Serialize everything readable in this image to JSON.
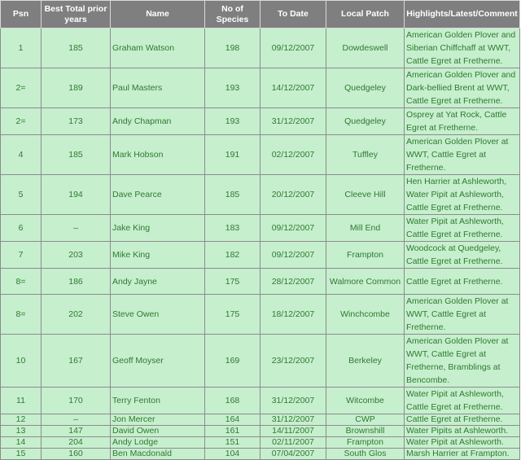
{
  "headers": [
    "Psn",
    "Best Total prior years",
    "Name",
    "No of Species",
    "To Date",
    "Local Patch",
    "Highlights/Latest/Comment"
  ],
  "rows": [
    {
      "psn": "1",
      "best": "185",
      "name": "Graham Watson",
      "species": "198",
      "date": "09/12/2007",
      "patch": "Dowdeswell",
      "comment": "American Golden Plover and Siberian Chiffchaff at WWT, Cattle Egret at Fretherne."
    },
    {
      "psn": "2=",
      "best": "189",
      "name": "Paul Masters",
      "species": "193",
      "date": "14/12/2007",
      "patch": "Quedgeley",
      "comment": "American Golden Plover and Dark-bellied Brent at WWT, Cattle Egret at Fretherne."
    },
    {
      "psn": "2=",
      "best": "173",
      "name": "Andy Chapman",
      "species": "193",
      "date": "31/12/2007",
      "patch": "Quedgeley",
      "comment": "Osprey at Yat Rock, Cattle Egret at Fretherne."
    },
    {
      "psn": "4",
      "best": "185",
      "name": "Mark Hobson",
      "species": "191",
      "date": "02/12/2007",
      "patch": "Tuffley",
      "comment": "American Golden Plover at WWT, Cattle Egret at Fretherne."
    },
    {
      "psn": "5",
      "best": "194",
      "name": "Dave Pearce",
      "species": "185",
      "date": "20/12/2007",
      "patch": "Cleeve Hill",
      "comment": "Hen Harrier at Ashleworth, Water Pipit at Ashleworth, Cattle Egret at Fretherne."
    },
    {
      "psn": "6",
      "best": "–",
      "name": "Jake King",
      "species": "183",
      "date": "09/12/2007",
      "patch": "Mill End",
      "comment": "Water Pipit at Ashleworth, Cattle Egret at Fretherne."
    },
    {
      "psn": "7",
      "best": "203",
      "name": "Mike King",
      "species": "182",
      "date": "09/12/2007",
      "patch": "Frampton",
      "comment": "Woodcock at Quedgeley, Cattle Egret at Fretherne."
    },
    {
      "psn": "8=",
      "best": "186",
      "name": "Andy Jayne",
      "species": "175",
      "date": "28/12/2007",
      "patch": "Walmore Common",
      "comment": "Cattle Egret at Fretherne."
    },
    {
      "psn": "8=",
      "best": "202",
      "name": "Steve Owen",
      "species": "175",
      "date": "18/12/2007",
      "patch": "Winchcombe",
      "comment": "American Golden Plover at WWT, Cattle Egret at Fretherne."
    },
    {
      "psn": "10",
      "best": "167",
      "name": "Geoff Moyser",
      "species": "169",
      "date": "23/12/2007",
      "patch": "Berkeley",
      "comment": "American Golden Plover at WWT, Cattle Egret at Fretherne, Bramblings at Bencombe."
    },
    {
      "psn": "11",
      "best": "170",
      "name": "Terry Fenton",
      "species": "168",
      "date": "31/12/2007",
      "patch": "Witcombe",
      "comment": "Water Pipit at Ashleworth, Cattle Egret at Fretherne."
    },
    {
      "psn": "12",
      "best": "–",
      "name": "Jon Mercer",
      "species": "164",
      "date": "31/12/2007",
      "patch": "CWP",
      "comment": "Cattle Egret at Fretherne."
    },
    {
      "psn": "13",
      "best": "147",
      "name": "David Owen",
      "species": "161",
      "date": "14/11/2007",
      "patch": "Brownshill",
      "comment": "Water Pipits at Ashleworth."
    },
    {
      "psn": "14",
      "best": "204",
      "name": "Andy Lodge",
      "species": "151",
      "date": "02/11/2007",
      "patch": "Frampton",
      "comment": "Water Pipit at Ashleworth."
    },
    {
      "psn": "15",
      "best": "160",
      "name": "Ben Macdonald",
      "species": "104",
      "date": "07/04/2007",
      "patch": "South Glos",
      "comment": "Marsh Harrier at Frampton."
    }
  ]
}
